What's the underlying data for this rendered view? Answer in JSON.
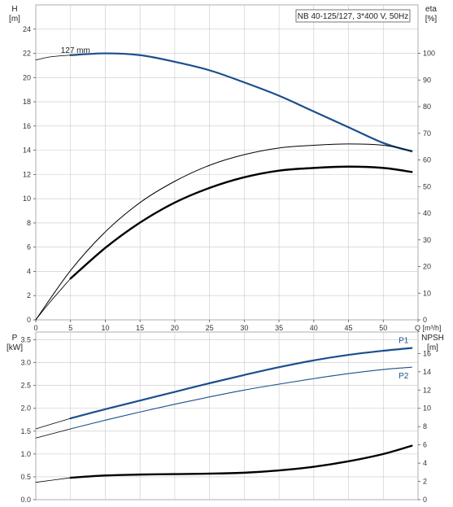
{
  "colors": {
    "blue": "#1a4f8c",
    "black": "#000000",
    "grid": "#c8c8c8",
    "frame": "#9a9a9a",
    "background": "#ffffff"
  },
  "chart_data": [
    {
      "type": "line",
      "title": "NB 40-125/127, 3*400 V, 50Hz",
      "xlabel": "Q [m³/h]",
      "x_tick_labels": [
        "0",
        "5",
        "10",
        "15",
        "20",
        "25",
        "30",
        "35",
        "40",
        "45",
        "50",
        "Q [m³/h]"
      ],
      "xlim": [
        0,
        55
      ],
      "grid": true,
      "left_axis": {
        "label_line1": "H",
        "label_line2": "[m]",
        "ylim": [
          0,
          26
        ],
        "ticks": [
          "0",
          "2",
          "4",
          "6",
          "8",
          "10",
          "12",
          "14",
          "16",
          "18",
          "20",
          "22",
          "24"
        ]
      },
      "right_axis": {
        "label_line1": "eta",
        "label_line2": "[%]",
        "ylim": [
          0,
          118.2
        ],
        "ticks": [
          "0",
          "10",
          "20",
          "30",
          "40",
          "50",
          "60",
          "70",
          "80",
          "90",
          "100"
        ]
      },
      "series": [
        {
          "name": "127 mm",
          "axis": "left",
          "color": "#1a4f8c",
          "width": 2.2,
          "x": [
            5,
            10,
            15,
            20,
            25,
            30,
            35,
            40,
            45,
            50,
            54.1
          ],
          "y": [
            21.85,
            22.0,
            21.85,
            21.3,
            20.6,
            19.6,
            18.5,
            17.2,
            15.9,
            14.6,
            13.9
          ]
        },
        {
          "name": "",
          "axis": "left",
          "color": "#000000",
          "width": 0.8,
          "x": [
            0,
            2,
            5
          ],
          "y": [
            21.45,
            21.7,
            21.85
          ]
        },
        {
          "name": "",
          "axis": "right",
          "color": "#000000",
          "width": 1.0,
          "x": [
            0,
            5,
            10,
            15,
            20,
            25,
            30,
            35,
            40,
            45,
            50,
            54.1
          ],
          "y": [
            0,
            18.5,
            33,
            44,
            52,
            58,
            62,
            64.5,
            65.5,
            66,
            65.5,
            63.5
          ]
        },
        {
          "name": "",
          "axis": "right",
          "color": "#000000",
          "width": 2.4,
          "x": [
            5,
            10,
            15,
            20,
            25,
            30,
            35,
            40,
            45,
            50,
            54.1
          ],
          "y": [
            15.5,
            27,
            36.5,
            44,
            49.5,
            53.5,
            56,
            57,
            57.5,
            57,
            55.5
          ]
        },
        {
          "name": "",
          "axis": "right",
          "color": "#000000",
          "width": 0.8,
          "x": [
            0,
            2,
            5
          ],
          "y": [
            0,
            6.5,
            15.5
          ]
        }
      ]
    },
    {
      "type": "line",
      "xlim": [
        0,
        55
      ],
      "grid": true,
      "left_axis": {
        "label_line1": "P",
        "label_line2": "[kW]",
        "ylim": [
          0,
          3.67
        ],
        "ticks": [
          "0.0",
          "0.5",
          "1.0",
          "1.5",
          "2.0",
          "2.5",
          "3.0",
          "3.5"
        ]
      },
      "right_axis": {
        "label_line1": "NPSH",
        "label_line2": "[m]",
        "ylim": [
          0,
          18.35
        ],
        "ticks": [
          "0",
          "2",
          "4",
          "6",
          "8",
          "10",
          "12",
          "14",
          "16"
        ]
      },
      "series": [
        {
          "name": "P1",
          "axis": "left",
          "color": "#1a4f8c",
          "width": 2.2,
          "x": [
            5,
            10,
            15,
            20,
            25,
            30,
            35,
            40,
            45,
            50,
            54.1
          ],
          "y": [
            1.78,
            1.98,
            2.17,
            2.36,
            2.55,
            2.73,
            2.9,
            3.05,
            3.17,
            3.26,
            3.32
          ]
        },
        {
          "name": "P2",
          "axis": "left",
          "color": "#1a4f8c",
          "width": 1.1,
          "x": [
            5,
            10,
            15,
            20,
            25,
            30,
            35,
            40,
            45,
            50,
            54.1
          ],
          "y": [
            1.55,
            1.74,
            1.92,
            2.09,
            2.25,
            2.4,
            2.53,
            2.65,
            2.76,
            2.85,
            2.9
          ]
        },
        {
          "name": "",
          "axis": "left",
          "color": "#000000",
          "width": 0.8,
          "x": [
            0,
            5
          ],
          "y": [
            1.55,
            1.78
          ]
        },
        {
          "name": "",
          "axis": "left",
          "color": "#000000",
          "width": 0.8,
          "x": [
            0,
            5
          ],
          "y": [
            1.35,
            1.55
          ]
        },
        {
          "name": "",
          "axis": "right",
          "color": "#000000",
          "width": 2.4,
          "x": [
            5,
            10,
            15,
            20,
            25,
            30,
            35,
            40,
            45,
            50,
            54.1
          ],
          "y": [
            2.4,
            2.65,
            2.75,
            2.8,
            2.85,
            2.95,
            3.2,
            3.6,
            4.2,
            5.0,
            5.9
          ]
        },
        {
          "name": "",
          "axis": "right",
          "color": "#000000",
          "width": 0.8,
          "x": [
            0,
            5
          ],
          "y": [
            1.9,
            2.4
          ]
        }
      ]
    }
  ]
}
